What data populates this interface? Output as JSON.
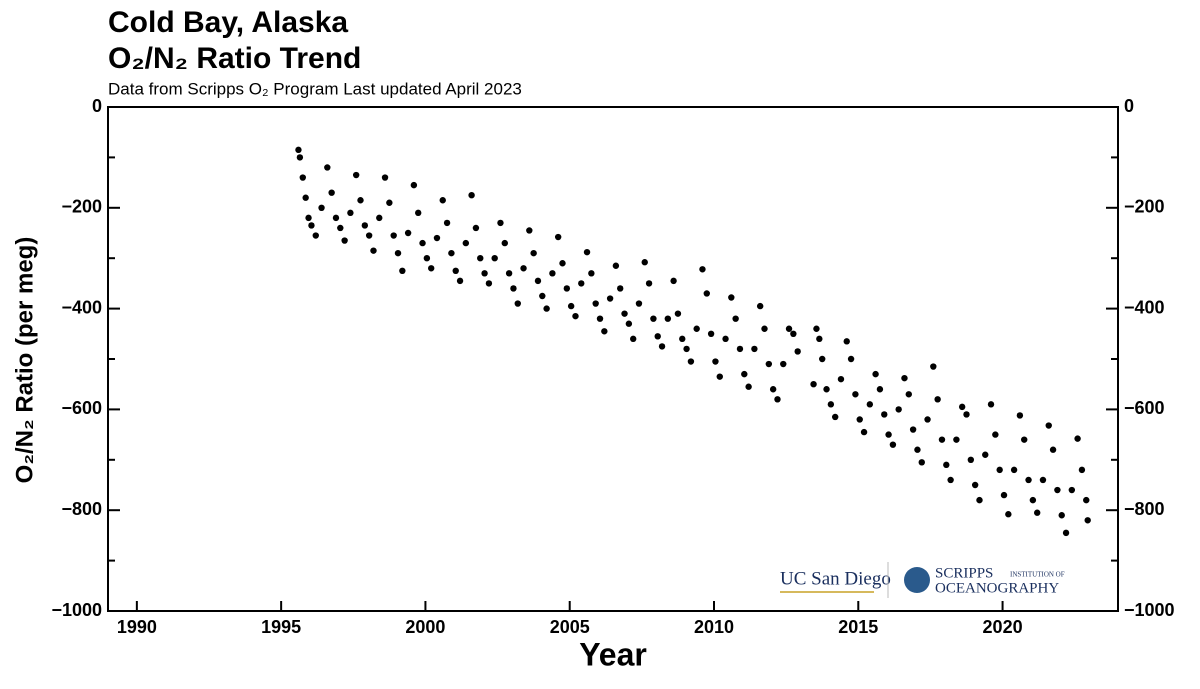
{
  "chart_data": {
    "type": "scatter",
    "title": "Cold Bay, Alaska",
    "subtitle_line": "O₂/N₂ Ratio Trend",
    "subtitle": "Data from Scripps O₂ Program   Last updated April 2023",
    "x_label": "Year",
    "y_label": "O₂/N₂ Ratio (per meg)",
    "logos": [
      "UC San Diego",
      "SCRIPPS",
      "INSTITUTION OF",
      "OCEANOGRAPHY"
    ],
    "color": "#000000",
    "xlim": [
      1989,
      2024
    ],
    "xticks": [
      1990,
      1995,
      2000,
      2005,
      2010,
      2015,
      2020
    ],
    "ylim": [
      -1000,
      0
    ],
    "yticks": [
      {
        "value": -1000,
        "label": "−1000"
      },
      {
        "value": -800,
        "label": "−800"
      },
      {
        "value": -600,
        "label": "−600"
      },
      {
        "value": -400,
        "label": "−400"
      },
      {
        "value": -200,
        "label": "−200"
      },
      0
    ],
    "yminorticks": [
      -900,
      -700,
      -500,
      -300,
      -100
    ],
    "x": [
      1995.6,
      1995.65,
      1995.75,
      1995.85,
      1995.95,
      1996.05,
      1996.2,
      1996.4,
      1996.6,
      1996.75,
      1996.9,
      1997.05,
      1997.2,
      1997.4,
      1997.6,
      1997.75,
      1997.9,
      1998.05,
      1998.2,
      1998.4,
      1998.6,
      1998.75,
      1998.9,
      1999.05,
      1999.2,
      1999.4,
      1999.6,
      1999.75,
      1999.9,
      2000.05,
      2000.2,
      2000.4,
      2000.6,
      2000.75,
      2000.9,
      2001.05,
      2001.2,
      2001.4,
      2001.6,
      2001.75,
      2001.9,
      2002.05,
      2002.2,
      2002.4,
      2002.6,
      2002.75,
      2002.9,
      2003.05,
      2003.2,
      2003.4,
      2003.6,
      2003.75,
      2003.9,
      2004.05,
      2004.2,
      2004.4,
      2004.6,
      2004.75,
      2004.9,
      2005.05,
      2005.2,
      2005.4,
      2005.6,
      2005.75,
      2005.9,
      2006.05,
      2006.2,
      2006.4,
      2006.6,
      2006.75,
      2006.9,
      2007.05,
      2007.2,
      2007.4,
      2007.6,
      2007.75,
      2007.9,
      2008.05,
      2008.2,
      2008.4,
      2008.6,
      2008.75,
      2008.9,
      2009.05,
      2009.2,
      2009.4,
      2009.6,
      2009.75,
      2009.9,
      2010.05,
      2010.2,
      2010.4,
      2010.6,
      2010.75,
      2010.9,
      2011.05,
      2011.2,
      2011.4,
      2011.6,
      2011.75,
      2011.9,
      2012.05,
      2012.2,
      2012.4,
      2012.6,
      2012.75,
      2012.9,
      2013.45,
      2013.55,
      2013.65,
      2013.75,
      2013.9,
      2014.05,
      2014.2,
      2014.4,
      2014.6,
      2014.75,
      2014.9,
      2015.05,
      2015.2,
      2015.4,
      2015.6,
      2015.75,
      2015.9,
      2016.05,
      2016.2,
      2016.4,
      2016.6,
      2016.75,
      2016.9,
      2017.05,
      2017.2,
      2017.4,
      2017.6,
      2017.75,
      2017.9,
      2018.05,
      2018.2,
      2018.4,
      2018.6,
      2018.75,
      2018.9,
      2019.05,
      2019.2,
      2019.4,
      2019.6,
      2019.75,
      2019.9,
      2020.05,
      2020.2,
      2020.4,
      2020.6,
      2020.75,
      2020.9,
      2021.05,
      2021.2,
      2021.4,
      2021.6,
      2021.75,
      2021.9,
      2022.05,
      2022.2,
      2022.4,
      2022.6,
      2022.75,
      2022.9,
      2022.95
    ],
    "values": [
      -85,
      -100,
      -140,
      -180,
      -220,
      -235,
      -255,
      -200,
      -120,
      -170,
      -220,
      -240,
      -265,
      -210,
      -135,
      -185,
      -235,
      -255,
      -285,
      -220,
      -140,
      -190,
      -255,
      -290,
      -325,
      -250,
      -155,
      -210,
      -270,
      -300,
      -320,
      -260,
      -185,
      -230,
      -290,
      -325,
      -345,
      -270,
      -175,
      -240,
      -300,
      -330,
      -350,
      -300,
      -230,
      -270,
      -330,
      -360,
      -390,
      -320,
      -245,
      -290,
      -345,
      -375,
      -400,
      -330,
      -258,
      -310,
      -360,
      -395,
      -415,
      -350,
      -288,
      -330,
      -390,
      -420,
      -445,
      -380,
      -315,
      -360,
      -410,
      -430,
      -460,
      -390,
      -308,
      -350,
      -420,
      -455,
      -475,
      -420,
      -345,
      -410,
      -460,
      -480,
      -505,
      -440,
      -322,
      -370,
      -450,
      -505,
      -535,
      -460,
      -378,
      -420,
      -480,
      -530,
      -555,
      -480,
      -395,
      -440,
      -510,
      -560,
      -580,
      -510,
      -440,
      -450,
      -485,
      -550,
      -440,
      -460,
      -500,
      -560,
      -590,
      -615,
      -540,
      -465,
      -500,
      -570,
      -620,
      -645,
      -590,
      -530,
      -560,
      -610,
      -650,
      -670,
      -600,
      -538,
      -570,
      -640,
      -680,
      -705,
      -620,
      -515,
      -580,
      -660,
      -710,
      -740,
      -660,
      -595,
      -610,
      -700,
      -750,
      -780,
      -690,
      -590,
      -650,
      -720,
      -770,
      -808,
      -720,
      -612,
      -660,
      -740,
      -780,
      -805,
      -740,
      -632,
      -680,
      -760,
      -810,
      -845,
      -760,
      -658,
      -720,
      -780,
      -820
    ]
  }
}
